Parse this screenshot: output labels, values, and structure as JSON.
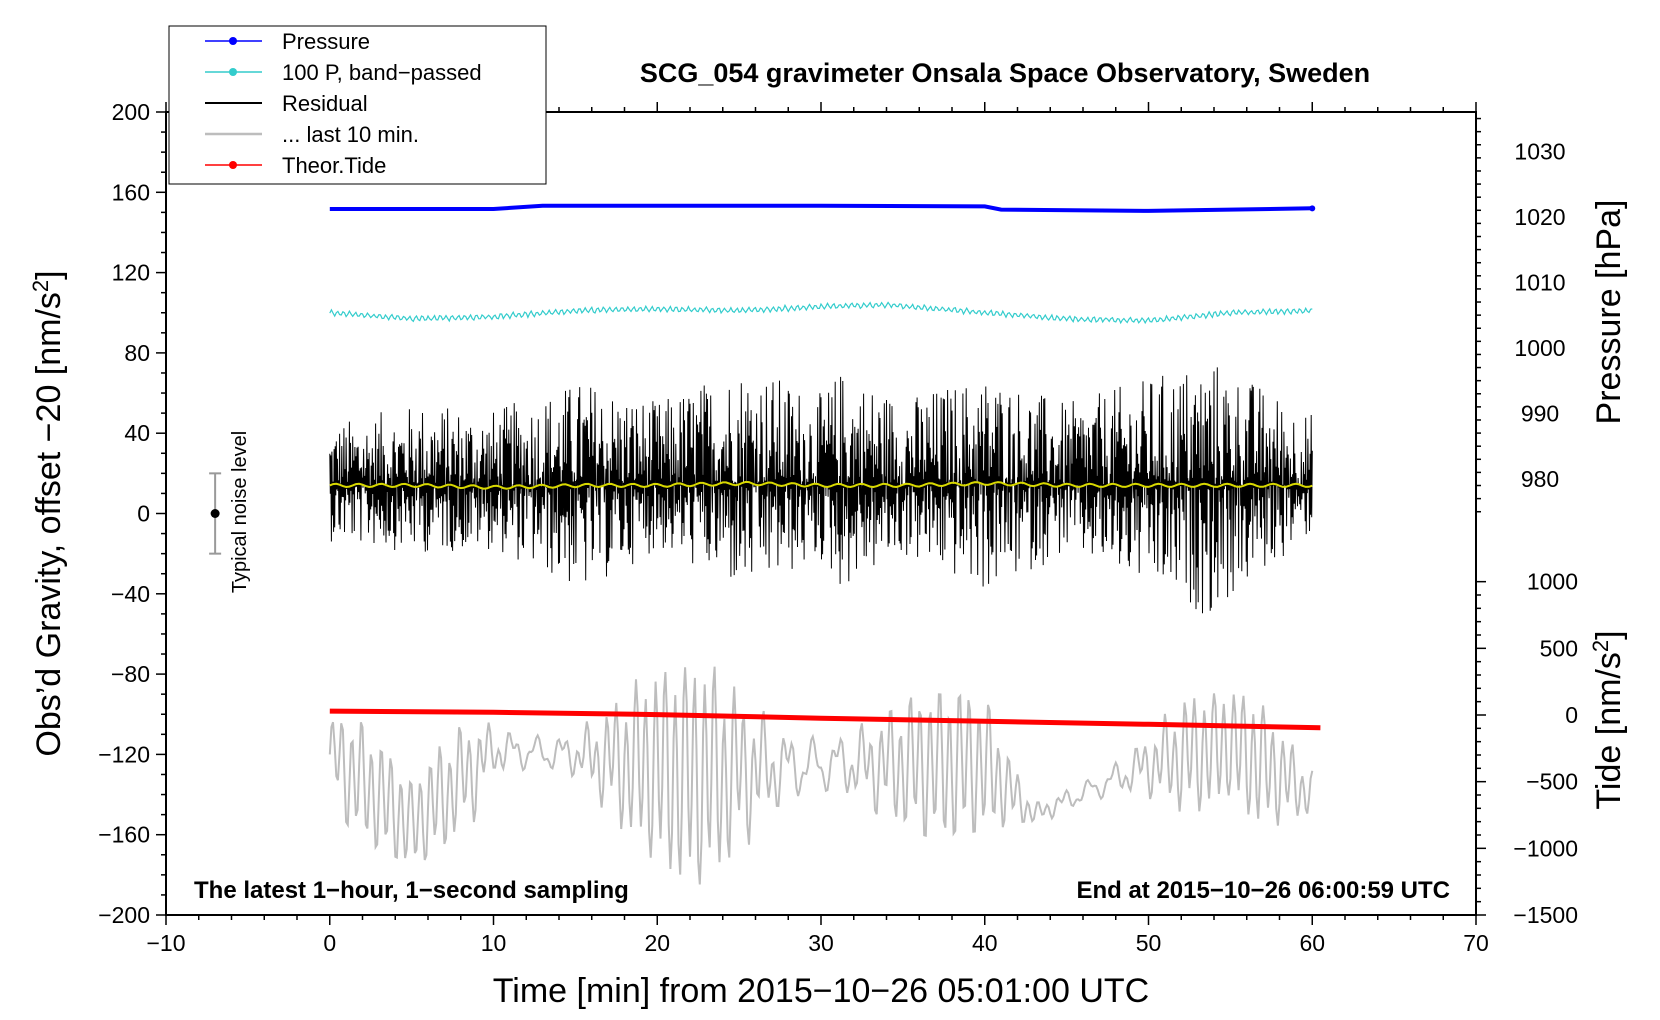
{
  "chart_data": {
    "type": "line",
    "title": "SCG_054 gravimeter Onsala Space Observatory, Sweden",
    "xlabel": "Time [min] from 2015−10−26 05:01:00 UTC",
    "ylabel": "Obs’d Gravity, offset −20 [nm/s²]",
    "ylabel_right_pressure": "Pressure [hPa]",
    "ylabel_right_tide": "Tide [nm/s²]",
    "xlim": [
      -10,
      70
    ],
    "ylim": [
      -200,
      200
    ],
    "pressure_lim": [
      974.5,
      1036
    ],
    "tide_lim": [
      -1500,
      1500
    ],
    "x_ticks": [
      {
        "value": -10,
        "label": "−10"
      },
      {
        "value": 0,
        "label": "0"
      },
      {
        "value": 10,
        "label": "10"
      },
      {
        "value": 20,
        "label": "20"
      },
      {
        "value": 30,
        "label": "30"
      },
      {
        "value": 40,
        "label": "40"
      },
      {
        "value": 50,
        "label": "50"
      },
      {
        "value": 60,
        "label": "60"
      },
      {
        "value": 70,
        "label": "70"
      }
    ],
    "y_ticks": [
      {
        "value": 200,
        "label": "200"
      },
      {
        "value": 160,
        "label": "160"
      },
      {
        "value": 120,
        "label": "120"
      },
      {
        "value": 80,
        "label": "80"
      },
      {
        "value": 40,
        "label": "40"
      },
      {
        "value": 0,
        "label": "0"
      },
      {
        "value": -40,
        "label": "−40"
      },
      {
        "value": -80,
        "label": "−80"
      },
      {
        "value": -120,
        "label": "−120"
      },
      {
        "value": -160,
        "label": "−160"
      },
      {
        "value": -200,
        "label": "−200"
      }
    ],
    "pressure_ticks": [
      {
        "value": 1030,
        "label": "1030"
      },
      {
        "value": 1020,
        "label": "1020"
      },
      {
        "value": 1010,
        "label": "1010"
      },
      {
        "value": 1000,
        "label": "1000"
      },
      {
        "value": 990,
        "label": "990"
      },
      {
        "value": 980,
        "label": "980"
      }
    ],
    "tide_ticks": [
      {
        "value": 1000,
        "label": "1000"
      },
      {
        "value": 500,
        "label": "500"
      },
      {
        "value": 0,
        "label": "0"
      },
      {
        "value": -500,
        "label": "−500"
      },
      {
        "value": -1000,
        "label": "−1000"
      },
      {
        "value": -1500,
        "label": "−1500"
      }
    ],
    "series": [
      {
        "name": "Pressure",
        "color": "#0000ff",
        "axis": "pressure",
        "x": [
          0,
          10,
          13,
          20,
          30,
          40,
          41,
          50,
          60
        ],
        "values": [
          1021.2,
          1021.2,
          1021.7,
          1021.7,
          1021.7,
          1021.6,
          1021.1,
          1020.9,
          1021.3
        ]
      },
      {
        "name": "100 P, band−passed",
        "color": "#33cccc",
        "axis": "gravity",
        "x": [
          0,
          5,
          10,
          15,
          20,
          25,
          30,
          34,
          40,
          45,
          50,
          55,
          60
        ],
        "values": [
          100,
          97,
          98,
          101,
          102,
          101,
          103,
          104,
          100,
          97,
          96,
          100,
          101
        ]
      },
      {
        "name": "Residual",
        "color": "#000000",
        "axis": "gravity",
        "x": [
          0,
          5.5,
          10,
          15.5,
          20,
          25.3,
          30,
          31.2,
          35,
          40.2,
          45,
          50,
          53.8,
          60
        ],
        "values": [
          14,
          14,
          13,
          14,
          14,
          15,
          14,
          14,
          14,
          15,
          14,
          14,
          14,
          14
        ],
        "envelope_max": [
          45,
          55,
          52,
          67,
          56,
          75,
          60,
          72,
          58,
          70,
          55,
          68,
          78,
          50
        ],
        "envelope_min": [
          -14,
          -20,
          -18,
          -40,
          -18,
          -40,
          -25,
          -38,
          -22,
          -40,
          -20,
          -38,
          -52,
          -10
        ]
      },
      {
        "name": "... last 10 min.",
        "color": "#bdbdbd",
        "axis": "gravity",
        "x": [
          0,
          5,
          10,
          15,
          22.5,
          30,
          40,
          43,
          50,
          55,
          60
        ],
        "values": [
          -120,
          -155,
          -118,
          -120,
          -130,
          -125,
          -125,
          -150,
          -125,
          -115,
          -140
        ],
        "envelope_max": [
          -97,
          -72,
          -93,
          -95,
          -60,
          -82,
          -90,
          -80,
          -88,
          -90,
          -95
        ],
        "envelope_min": [
          -155,
          -175,
          -160,
          -150,
          -185,
          -165,
          -158,
          -158,
          -152,
          -152,
          -158
        ]
      },
      {
        "name": "Theor.Tide",
        "color": "#ff0000",
        "axis": "tide",
        "x": [
          0,
          10,
          20,
          30,
          40,
          50,
          60.5
        ],
        "values": [
          29,
          20,
          3,
          -24,
          -47,
          -70,
          -96
        ]
      }
    ],
    "annotations": [
      {
        "text": "The latest 1−hour, 1−second sampling",
        "position": "bottom-left"
      },
      {
        "text": "End at 2015−10−26 06:00:59 UTC",
        "position": "bottom-right"
      },
      {
        "text": "Typical noise level",
        "position": "left"
      }
    ],
    "noise_bar": {
      "x": -7,
      "center": 0,
      "low": -20,
      "high": 20
    },
    "legend_placement": "top-left"
  }
}
